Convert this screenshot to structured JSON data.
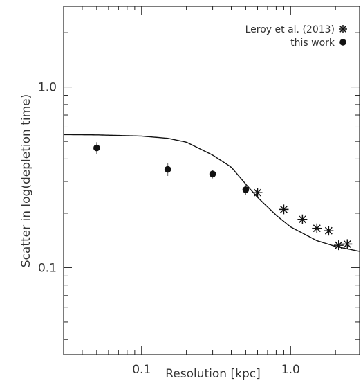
{
  "chart_data": {
    "type": "scatter",
    "xlabel": "Resolution [kpc]",
    "ylabel": "Scatter in log(depletion time)",
    "xscale": "log",
    "yscale": "log",
    "xlim": [
      0.03,
      2.9
    ],
    "ylim": [
      0.033,
      2.8
    ],
    "xticks": [
      {
        "value": 0.1,
        "label": "0.1"
      },
      {
        "value": 1.0,
        "label": "1.0"
      }
    ],
    "yticks": [
      {
        "value": 0.1,
        "label": "0.1"
      },
      {
        "value": 1.0,
        "label": "1.0"
      }
    ],
    "legend_position": "top-right",
    "series": [
      {
        "name": "Leroy et al. (2013)",
        "marker": "asterisk",
        "color": "#111111",
        "points": [
          {
            "x": 0.6,
            "y": 0.26
          },
          {
            "x": 0.9,
            "y": 0.21
          },
          {
            "x": 1.2,
            "y": 0.185
          },
          {
            "x": 1.5,
            "y": 0.165
          },
          {
            "x": 1.8,
            "y": 0.16
          },
          {
            "x": 2.1,
            "y": 0.133
          },
          {
            "x": 2.4,
            "y": 0.135
          }
        ]
      },
      {
        "name": "this work",
        "marker": "circle",
        "color": "#111111",
        "points": [
          {
            "x": 0.05,
            "y": 0.46,
            "err": 0.035
          },
          {
            "x": 0.15,
            "y": 0.35,
            "err": 0.028
          },
          {
            "x": 0.3,
            "y": 0.33,
            "err": 0.018
          },
          {
            "x": 0.5,
            "y": 0.27,
            "err": 0.018
          }
        ]
      }
    ],
    "curve": {
      "points": [
        {
          "x": 0.03,
          "y": 0.545
        },
        {
          "x": 0.05,
          "y": 0.543
        },
        {
          "x": 0.1,
          "y": 0.535
        },
        {
          "x": 0.15,
          "y": 0.52
        },
        {
          "x": 0.2,
          "y": 0.495
        },
        {
          "x": 0.3,
          "y": 0.42
        },
        {
          "x": 0.4,
          "y": 0.36
        },
        {
          "x": 0.5,
          "y": 0.29
        },
        {
          "x": 0.6,
          "y": 0.245
        },
        {
          "x": 0.8,
          "y": 0.195
        },
        {
          "x": 1.0,
          "y": 0.168
        },
        {
          "x": 1.5,
          "y": 0.141
        },
        {
          "x": 2.0,
          "y": 0.131
        },
        {
          "x": 2.9,
          "y": 0.123
        }
      ]
    }
  }
}
